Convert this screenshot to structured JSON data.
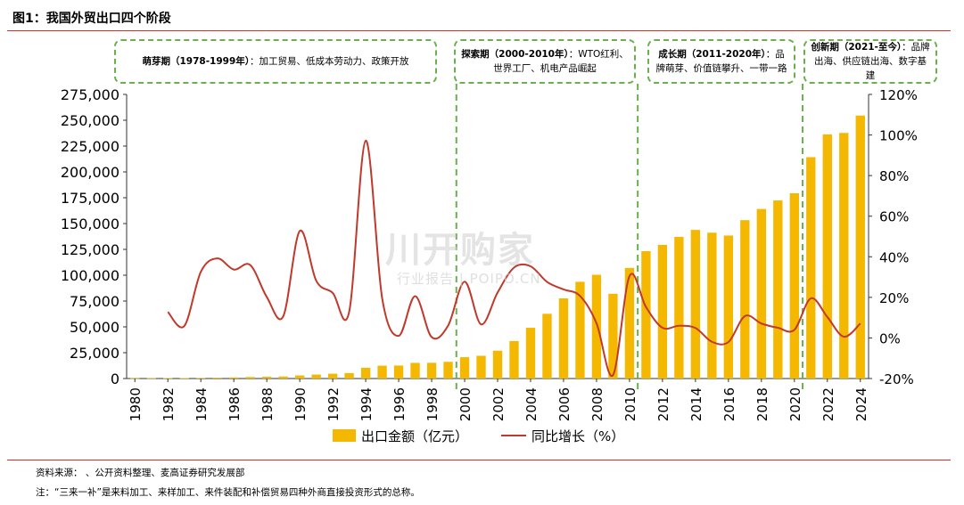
{
  "figure_title": "图1：我国外贸出口四个阶段",
  "phases": [
    {
      "title": "萌芽期（1978-1999年）",
      "desc": "：加工贸易、低成本劳动力、政策开放"
    },
    {
      "title": "探索期（2000-2010年）",
      "desc": "：WTO红利、世界工厂、机电产品崛起"
    },
    {
      "title": "成长期（2011-2020年）",
      "desc": "：品牌萌芽、价值链攀升、一带一路"
    },
    {
      "title": "创新期（2021-至今）",
      "desc": "：品牌出海、供应链出海、数字基建"
    }
  ],
  "watermark": {
    "main": "川开购家",
    "sub": "行业报告 | POIPO.CN"
  },
  "source_line": "资料来源：      、公开资料整理、麦高证券研究发展部",
  "note_line": "注：“三来一补”是来料加工、来样加工、来件装配和补偿贸易四种外商直接投资形式的总称。",
  "colors": {
    "bar": "#f5b800",
    "line": "#c0392b",
    "phase_border": "#6ab04c",
    "rule": "#c0392b"
  },
  "chart_data": {
    "type": "bar",
    "x": [
      1980,
      1981,
      1982,
      1983,
      1984,
      1985,
      1986,
      1987,
      1988,
      1989,
      1990,
      1991,
      1992,
      1993,
      1994,
      1995,
      1996,
      1997,
      1998,
      1999,
      2000,
      2001,
      2002,
      2003,
      2004,
      2005,
      2006,
      2007,
      2008,
      2009,
      2010,
      2011,
      2012,
      2013,
      2014,
      2015,
      2016,
      2017,
      2018,
      2019,
      2020,
      2021,
      2022,
      2023,
      2024
    ],
    "x_tick_labels": [
      "1980",
      "1982",
      "1984",
      "1986",
      "1988",
      "1990",
      "1992",
      "1994",
      "1996",
      "1998",
      "2000",
      "2002",
      "2004",
      "2006",
      "2008",
      "2010",
      "2012",
      "2014",
      "2016",
      "2018",
      "2020",
      "2022",
      "2024"
    ],
    "series": [
      {
        "name": "出口金额（亿元）",
        "type": "bar",
        "axis": "left",
        "values": [
          271,
          367,
          414,
          438,
          581,
          809,
          1082,
          1470,
          1767,
          1956,
          2986,
          3827,
          4676,
          5285,
          10422,
          12452,
          12576,
          15161,
          15224,
          16160,
          20634,
          22024,
          26948,
          36288,
          49103,
          62648,
          77598,
          93627,
          100395,
          82030,
          107023,
          123241,
          129359,
          137131,
          143884,
          141167,
          138419,
          153309,
          164129,
          172373,
          179326,
          214255,
          236337,
          237726,
          254545
        ]
      },
      {
        "name": "同比增长（%）",
        "type": "line",
        "axis": "right",
        "values": [
          null,
          null,
          12.8,
          5.9,
          32.6,
          39.2,
          33.7,
          35.9,
          20.2,
          10.7,
          52.7,
          28.2,
          22.2,
          13.0,
          97.2,
          19.5,
          1.0,
          20.6,
          0.4,
          6.1,
          27.7,
          6.7,
          22.4,
          34.7,
          35.3,
          27.6,
          23.9,
          20.7,
          7.2,
          -18.3,
          30.5,
          15.2,
          5.0,
          6.0,
          4.9,
          -1.9,
          -2.0,
          10.8,
          7.1,
          5.0,
          4.0,
          19.5,
          10.3,
          0.6,
          7.1
        ]
      }
    ],
    "y_left": {
      "range": [
        0,
        275000
      ],
      "ticks": [
        "0",
        "25,000",
        "50,000",
        "75,000",
        "100,000",
        "125,000",
        "150,000",
        "175,000",
        "200,000",
        "225,000",
        "250,000",
        "275,000"
      ]
    },
    "y_right": {
      "range": [
        -20,
        120
      ],
      "ticks": [
        "-20%",
        "0%",
        "20%",
        "40%",
        "60%",
        "80%",
        "100%",
        "120%"
      ]
    },
    "grid": false,
    "legend_position": "bottom"
  }
}
